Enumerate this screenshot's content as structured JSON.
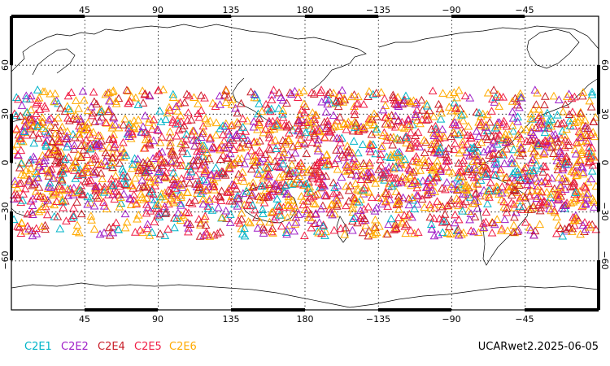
{
  "map": {
    "projection": "cylindrical-equidistant",
    "center_longitude": 180,
    "lat_range": [
      -90,
      90
    ],
    "gridlines": "dotted",
    "top_lon_labels": [
      "45",
      "90",
      "135",
      "180",
      "−135",
      "−90",
      "−45"
    ],
    "bottom_lon_labels": [
      "45",
      "90",
      "135",
      "180",
      "−135",
      "−90",
      "−45"
    ],
    "left_lat_labels": [
      "60",
      "30",
      "0",
      "−30",
      "−60"
    ],
    "right_lat_labels": [
      "60",
      "30",
      "0",
      "−30",
      "−60"
    ],
    "observation_lat_band": [
      -45,
      45
    ],
    "marker_shape": "triangle-outline"
  },
  "legend": {
    "items": [
      {
        "label": "C2E1",
        "color": "#00b4c8"
      },
      {
        "label": "C2E2",
        "color": "#a020c8"
      },
      {
        "label": "C2E4",
        "color": "#c81e28"
      },
      {
        "label": "C2E5",
        "color": "#f01e46"
      },
      {
        "label": "C2E6",
        "color": "#ffaa00"
      }
    ]
  },
  "dataset_label": "UCARwet2.2025-06-05"
}
